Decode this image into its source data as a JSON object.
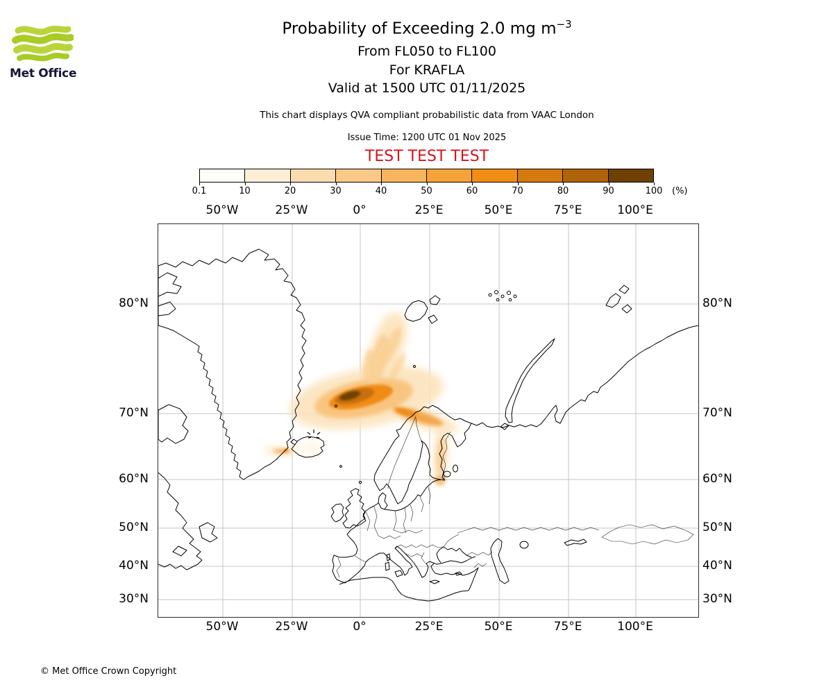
{
  "brand": {
    "logo_text": "Met Office"
  },
  "header": {
    "title_main": "Probability of Exceeding 2.0 mg m",
    "title_sup": "−3",
    "line2": "From FL050 to FL100",
    "line3": "For KRAFLA",
    "line4": "Valid at 1500 UTC 01/11/2025",
    "description": "This chart displays QVA compliant probabilistic data from VAAC London",
    "issue_time": "Issue Time: 1200 UTC 01 Nov 2025",
    "test_label": "TEST TEST TEST"
  },
  "colorbar": {
    "ticks": [
      "0.1",
      "10",
      "20",
      "30",
      "40",
      "50",
      "60",
      "70",
      "80",
      "90",
      "100"
    ],
    "unit_label": "(%)",
    "colors": [
      "#fffdf8",
      "#fdeed7",
      "#fbdcae",
      "#f9c987",
      "#f7b55e",
      "#f5a238",
      "#ef8d14",
      "#d3790d",
      "#b06309",
      "#6e4004"
    ]
  },
  "map": {
    "x_labels": [
      "50°W",
      "25°W",
      "0°",
      "25°E",
      "50°E",
      "75°E",
      "100°E"
    ],
    "y_labels": [
      "80°N",
      "70°N",
      "60°N",
      "50°N",
      "40°N",
      "30°N"
    ]
  },
  "footer": {
    "copyright": "© Met Office Crown Copyright"
  },
  "accent_colors": {
    "test_red": "#d8121a",
    "logo_green": "#b5d233",
    "grid_gray": "#c4c4c4"
  },
  "chart_data": {
    "type": "heatmap",
    "title": "Probability of Exceeding 2.0 mg m-3",
    "layer": "FL050 to FL100",
    "volcano": "KRAFLA",
    "valid_time": "1500 UTC 01/11/2025",
    "issue_time": "1200 UTC 01 Nov 2025",
    "source": "VAAC London",
    "legend_unit": "%",
    "scale_percent": [
      0.1,
      10,
      20,
      30,
      40,
      50,
      60,
      70,
      80,
      90,
      100
    ],
    "lon_ticks_deg_east": [
      -50,
      -25,
      0,
      25,
      50,
      75,
      100
    ],
    "lat_ticks_deg_north": [
      80,
      70,
      60,
      50,
      40,
      30
    ],
    "features": [
      {
        "name": "main-plume-core",
        "approx_center": "4W 71.5N",
        "max_probability_percent": 100
      },
      {
        "name": "northeast-fan",
        "approx_center": "8E 75N",
        "max_probability_percent": 40
      },
      {
        "name": "east-streak",
        "approx_center": "20E 70N",
        "max_probability_percent": 50
      },
      {
        "name": "norway-coast-trail",
        "approx_center": "25E 63N",
        "max_probability_percent": 30
      },
      {
        "name": "iceland-west-streak",
        "approx_center": "27W 65N",
        "max_probability_percent": 60
      }
    ]
  }
}
